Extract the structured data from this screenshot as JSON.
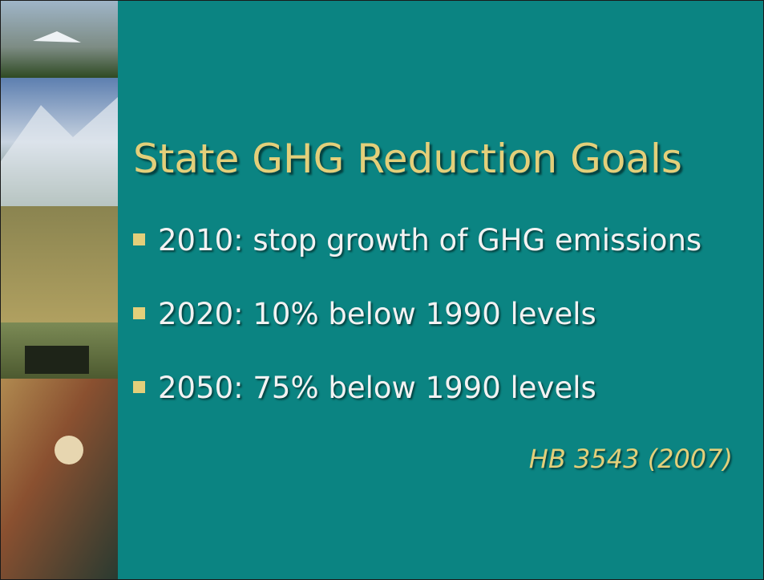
{
  "title": "State GHG Reduction Goals",
  "bullets": [
    "2010: stop growth of GHG emissions",
    "2020: 10% below 1990 levels",
    "2050: 75% below 1990 levels"
  ],
  "citation": "HB 3543 (2007)"
}
